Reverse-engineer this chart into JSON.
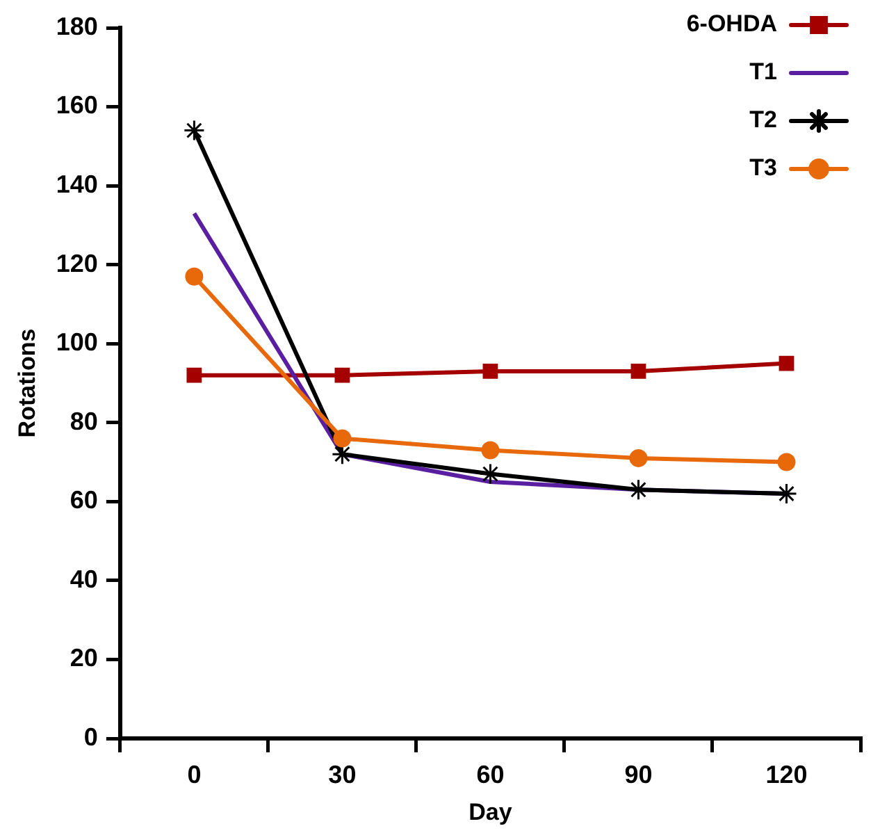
{
  "chart_data": {
    "type": "line",
    "xlabel": "Day",
    "ylabel": "Rotations",
    "categories": [
      "0",
      "30",
      "60",
      "90",
      "120"
    ],
    "ylim": [
      0,
      180
    ],
    "yticks": [
      0,
      20,
      40,
      60,
      80,
      100,
      120,
      140,
      160,
      180
    ],
    "grid": false,
    "legend": "top right",
    "series": [
      {
        "name": "6-OHDA",
        "color": "#a50000",
        "marker": "square",
        "values": [
          92,
          92,
          93,
          93,
          95
        ]
      },
      {
        "name": "T1",
        "color": "#5a1ea0",
        "marker": "none",
        "values": [
          133,
          72,
          65,
          63,
          62
        ]
      },
      {
        "name": "T2",
        "color": "#000000",
        "marker": "cross",
        "values": [
          154,
          72,
          67,
          63,
          62
        ]
      },
      {
        "name": "T3",
        "color": "#e8690a",
        "marker": "circle",
        "values": [
          117,
          76,
          73,
          71,
          70
        ]
      }
    ]
  }
}
